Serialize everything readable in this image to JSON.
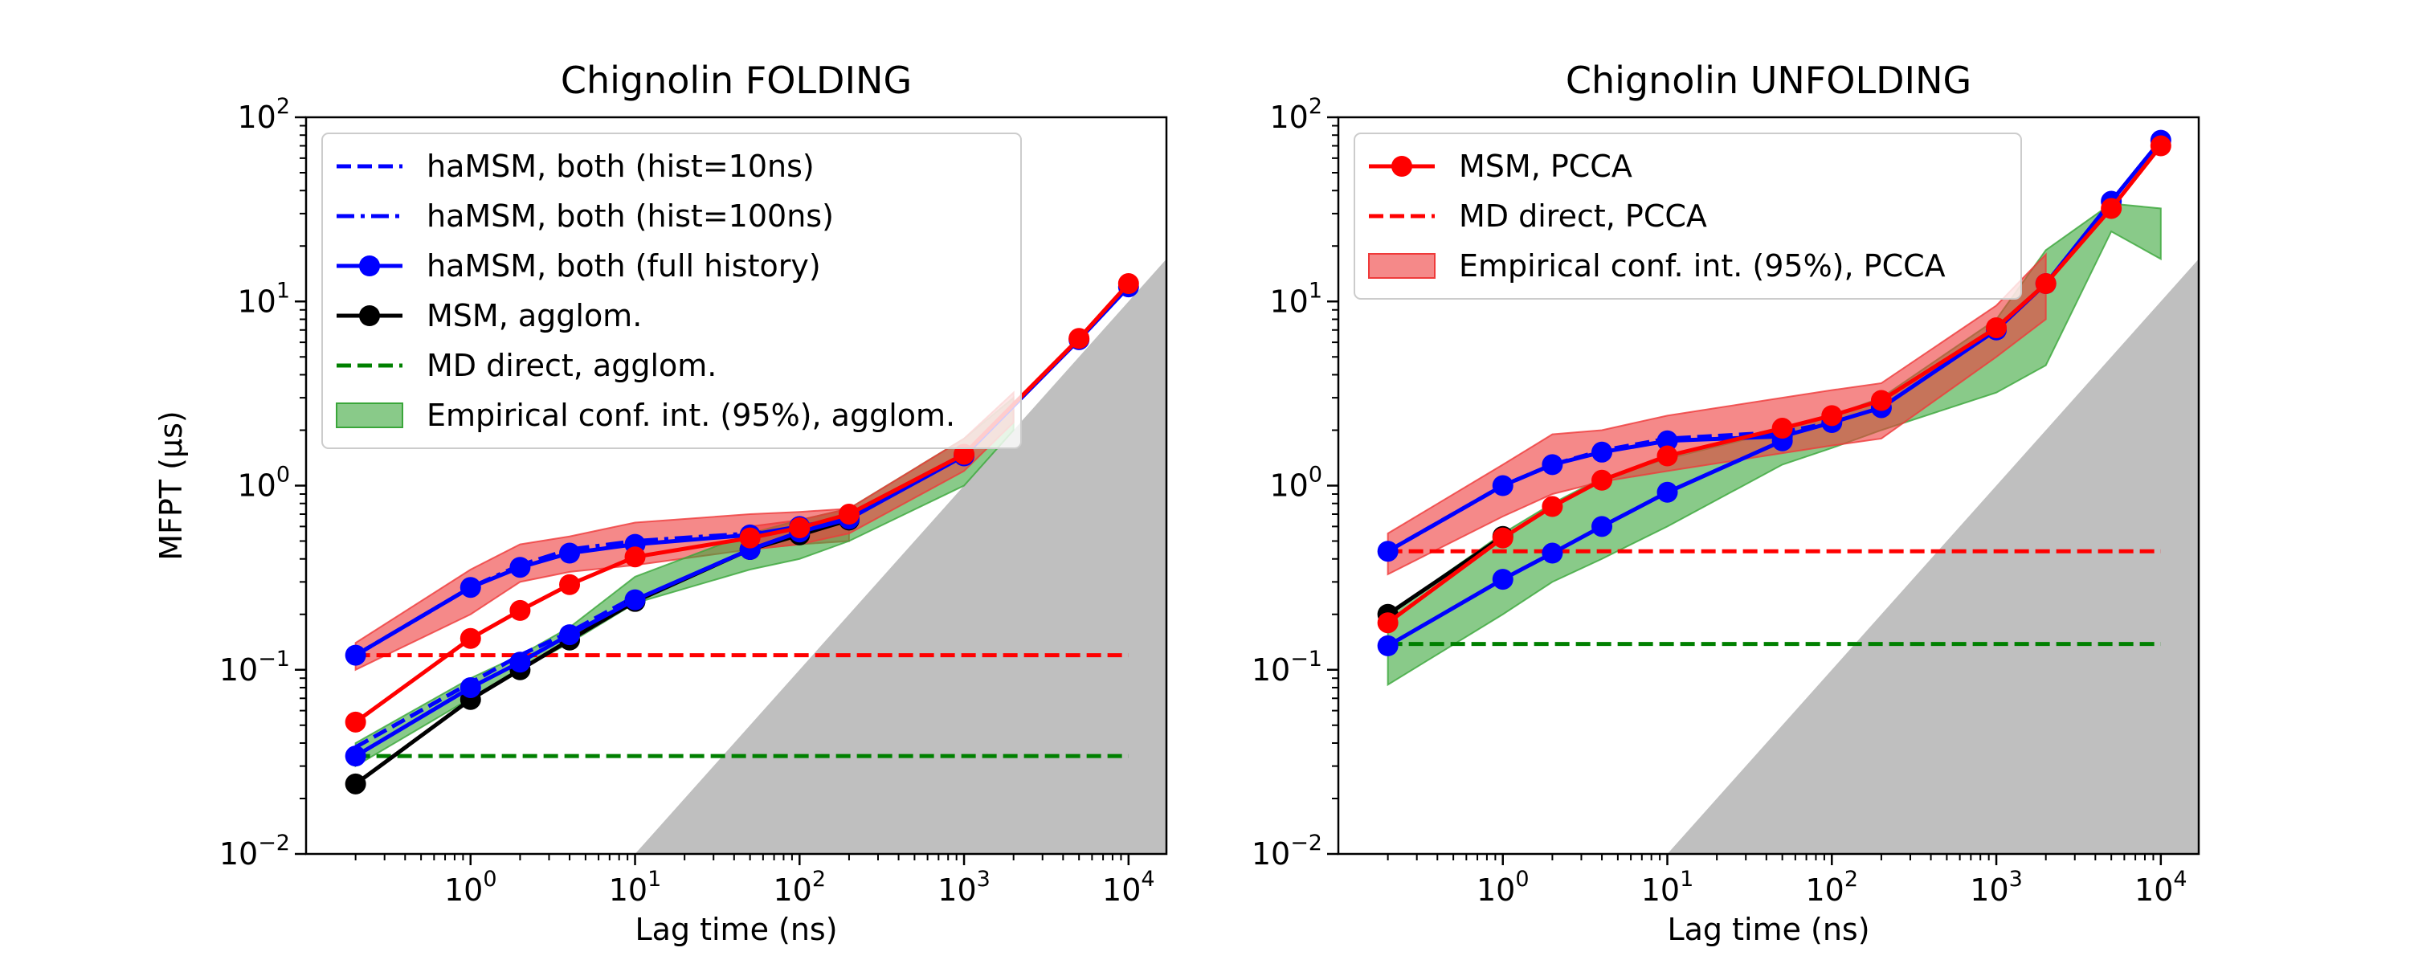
{
  "chart_data": [
    {
      "type": "line",
      "title": "Chignolin FOLDING",
      "xlabel": "Lag time (ns)",
      "ylabel": "MFPT (μs)",
      "xscale": "log",
      "yscale": "log",
      "xlim": [
        0.1,
        17000
      ],
      "ylim": [
        0.01,
        100
      ],
      "xticks": [
        1,
        10,
        100,
        1000,
        10000
      ],
      "xtick_labels": [
        [
          "10",
          "0"
        ],
        [
          "10",
          "1"
        ],
        [
          "10",
          "2"
        ],
        [
          "10",
          "3"
        ],
        [
          "10",
          "4"
        ]
      ],
      "yticks": [
        0.01,
        0.1,
        1,
        10,
        100
      ],
      "ytick_labels": [
        [
          "10",
          "−2"
        ],
        [
          "10",
          "−1"
        ],
        [
          "10",
          "0"
        ],
        [
          "10",
          "1"
        ],
        [
          "10",
          "2"
        ]
      ],
      "legend_position": "top-left",
      "shaded_region": {
        "color": "#bfbfbf",
        "x": [
          10,
          17000,
          17000
        ],
        "y": [
          0.01,
          17,
          0.01
        ]
      },
      "bands": [
        {
          "name": "Empirical conf. int. (95%), PCCA",
          "color": "#ef3a3a",
          "x": [
            0.2,
            1,
            2,
            4,
            10,
            50,
            100,
            200
          ],
          "lo": [
            0.1,
            0.2,
            0.3,
            0.34,
            0.37,
            0.45,
            0.48,
            0.5
          ],
          "hi": [
            0.14,
            0.35,
            0.48,
            0.53,
            0.63,
            0.7,
            0.72,
            0.75
          ]
        },
        {
          "name": "Empirical conf. int. (95%), agglom.",
          "color": "#3aa63a",
          "x": [
            0.2,
            1,
            2,
            4,
            10,
            50,
            100,
            200,
            1000,
            2000
          ],
          "lo": [
            0.03,
            0.07,
            0.1,
            0.14,
            0.23,
            0.35,
            0.4,
            0.5,
            1.0,
            2.0
          ],
          "hi": [
            0.04,
            0.09,
            0.12,
            0.17,
            0.32,
            0.55,
            0.65,
            0.75,
            1.8,
            3.0
          ]
        },
        {
          "name": "Empirical conf. int. (95%), PCCA",
          "color": "#ef3a3a",
          "x": [
            50,
            100,
            200,
            1000,
            2000
          ],
          "lo": [
            0.45,
            0.48,
            0.55,
            1.2,
            2.2
          ],
          "hi": [
            0.6,
            0.65,
            0.75,
            1.8,
            3.2
          ]
        }
      ],
      "series": [
        {
          "name": "MD direct, PCCA",
          "color": "#ff0000",
          "style": "dashed",
          "x": [
            0.2,
            10000
          ],
          "y": [
            0.12,
            0.12
          ]
        },
        {
          "name": "MD direct, agglom.",
          "color": "#008000",
          "style": "dashed",
          "x": [
            0.2,
            10000
          ],
          "y": [
            0.034,
            0.034
          ]
        },
        {
          "name": "haMSM, both (hist=10ns)",
          "color": "#0000ff",
          "style": "dashed",
          "x": [
            0.2,
            1,
            2,
            4,
            10
          ],
          "y": [
            0.038,
            0.085,
            0.12,
            0.16,
            0.25
          ]
        },
        {
          "name": "haMSM, both (hist=100ns)",
          "color": "#0000ff",
          "style": "dashdot",
          "x": [
            0.2,
            1,
            2,
            4,
            10,
            50,
            100,
            200
          ],
          "y": [
            0.12,
            0.28,
            0.37,
            0.45,
            0.5,
            0.55,
            0.58,
            0.65
          ]
        },
        {
          "name": "MSM, agglom.",
          "color": "#000000",
          "style": "solid",
          "marker": true,
          "x": [
            0.2,
            1,
            2,
            4,
            10,
            50,
            100,
            200
          ],
          "y": [
            0.024,
            0.069,
            0.1,
            0.145,
            0.235,
            0.45,
            0.54,
            0.65
          ]
        },
        {
          "name": "haMSM, both (full history)",
          "color": "#0000ff",
          "style": "solid",
          "marker": true,
          "x": [
            0.2,
            1,
            2,
            4,
            10,
            50,
            100,
            200,
            1000,
            5000,
            10000
          ],
          "y": [
            0.034,
            0.08,
            0.11,
            0.155,
            0.24,
            0.45,
            0.56,
            0.66,
            1.45,
            6.2,
            12
          ]
        },
        {
          "name": "haMSM, both (full history)",
          "color": "#0000ff",
          "style": "solid",
          "marker": true,
          "x": [
            0.2,
            1,
            2,
            4,
            10,
            50,
            100,
            200
          ],
          "y": [
            0.12,
            0.28,
            0.36,
            0.43,
            0.48,
            0.54,
            0.6,
            0.67
          ]
        },
        {
          "name": "MSM, PCCA",
          "color": "#ff0000",
          "style": "solid",
          "marker": true,
          "x": [
            0.2,
            1,
            2,
            4,
            10,
            50,
            100,
            200,
            1000,
            5000,
            10000
          ],
          "y": [
            0.052,
            0.148,
            0.21,
            0.29,
            0.41,
            0.52,
            0.59,
            0.7,
            1.48,
            6.3,
            12.5
          ]
        }
      ],
      "legend": [
        {
          "label": "haMSM, both (hist=10ns)",
          "color": "#0000ff",
          "kind": "dashed"
        },
        {
          "label": "haMSM, both (hist=100ns)",
          "color": "#0000ff",
          "kind": "dashdot"
        },
        {
          "label": "haMSM, both (full history)",
          "color": "#0000ff",
          "kind": "marker"
        },
        {
          "label": "MSM, agglom.",
          "color": "#000000",
          "kind": "marker"
        },
        {
          "label": "MD direct, agglom.",
          "color": "#008000",
          "kind": "dashed"
        },
        {
          "label": "Empirical conf. int. (95%), agglom.",
          "color": "#3aa63a",
          "kind": "patch"
        }
      ]
    },
    {
      "type": "line",
      "title": "Chignolin UNFOLDING",
      "xlabel": "Lag time (ns)",
      "ylabel": "",
      "xscale": "log",
      "yscale": "log",
      "xlim": [
        0.1,
        17000
      ],
      "ylim": [
        0.01,
        100
      ],
      "xticks": [
        1,
        10,
        100,
        1000,
        10000
      ],
      "xtick_labels": [
        [
          "10",
          "0"
        ],
        [
          "10",
          "1"
        ],
        [
          "10",
          "2"
        ],
        [
          "10",
          "3"
        ],
        [
          "10",
          "4"
        ]
      ],
      "yticks": [
        0.01,
        0.1,
        1,
        10,
        100
      ],
      "ytick_labels": [
        [
          "10",
          "−2"
        ],
        [
          "10",
          "−1"
        ],
        [
          "10",
          "0"
        ],
        [
          "10",
          "1"
        ],
        [
          "10",
          "2"
        ]
      ],
      "legend_position": "top-left",
      "shaded_region": {
        "color": "#bfbfbf",
        "x": [
          10,
          17000,
          17000
        ],
        "y": [
          0.01,
          17,
          0.01
        ]
      },
      "bands": [
        {
          "name": "Empirical conf. int. (95%), agglom.",
          "color": "#3aa63a",
          "x": [
            0.2,
            1,
            2,
            4,
            10,
            50,
            100,
            200,
            1000,
            2000,
            5000,
            10000
          ],
          "lo": [
            0.083,
            0.2,
            0.3,
            0.4,
            0.6,
            1.3,
            1.6,
            2.0,
            3.2,
            4.5,
            24,
            17
          ],
          "hi": [
            0.2,
            0.55,
            0.8,
            1.1,
            1.4,
            2.0,
            2.4,
            3.0,
            8.0,
            19,
            34,
            32
          ]
        },
        {
          "name": "Empirical conf. int. (95%), PCCA",
          "color": "#ef3a3a",
          "x": [
            0.2,
            1,
            2,
            4,
            10,
            50,
            100,
            200,
            1000,
            2000
          ],
          "lo": [
            0.33,
            0.68,
            0.9,
            1.05,
            1.2,
            1.5,
            1.65,
            1.8,
            5.0,
            8.0
          ],
          "hi": [
            0.55,
            1.3,
            1.9,
            2.0,
            2.4,
            3.0,
            3.3,
            3.6,
            9.5,
            18
          ]
        }
      ],
      "series": [
        {
          "name": "MD direct, PCCA",
          "color": "#ff0000",
          "style": "dashed",
          "x": [
            0.2,
            10000
          ],
          "y": [
            0.44,
            0.44
          ]
        },
        {
          "name": "MD direct, agglom.",
          "color": "#008000",
          "style": "dashed",
          "x": [
            0.2,
            10000
          ],
          "y": [
            0.138,
            0.138
          ]
        },
        {
          "name": "MSM, agglom.",
          "color": "#000000",
          "style": "solid",
          "marker": true,
          "x": [
            0.2,
            1
          ],
          "y": [
            0.2,
            0.53
          ]
        },
        {
          "name": "haMSM, both (hist=100ns)",
          "color": "#0000ff",
          "style": "dashed",
          "x": [
            0.2,
            1,
            2,
            4,
            10,
            50,
            100
          ],
          "y": [
            0.44,
            1.0,
            1.3,
            1.55,
            1.8,
            1.95,
            2.2
          ]
        },
        {
          "name": "haMSM, both (full history)",
          "color": "#0000ff",
          "style": "solid",
          "marker": true,
          "x": [
            0.2,
            1,
            2,
            4,
            10,
            50,
            100,
            200,
            1000,
            2000,
            5000,
            10000
          ],
          "y": [
            0.44,
            1.0,
            1.3,
            1.52,
            1.75,
            1.85,
            2.2,
            2.65,
            7.0,
            12.5,
            35,
            75
          ]
        },
        {
          "name": "haMSM, both (full history)",
          "color": "#0000ff",
          "style": "solid",
          "marker": true,
          "x": [
            0.2,
            1,
            2,
            4,
            10,
            50
          ],
          "y": [
            0.135,
            0.31,
            0.43,
            0.6,
            0.92,
            1.75
          ]
        },
        {
          "name": "MSM, PCCA",
          "color": "#ff0000",
          "style": "solid",
          "marker": true,
          "x": [
            0.2,
            1,
            2,
            4,
            10,
            50,
            100,
            200,
            1000,
            2000,
            5000,
            10000
          ],
          "y": [
            0.18,
            0.52,
            0.77,
            1.07,
            1.45,
            2.05,
            2.4,
            2.9,
            7.2,
            12.5,
            32,
            70
          ]
        }
      ],
      "legend": [
        {
          "label": "MSM, PCCA",
          "color": "#ff0000",
          "kind": "marker"
        },
        {
          "label": "MD direct, PCCA",
          "color": "#ff0000",
          "kind": "dashed"
        },
        {
          "label": "Empirical conf. int. (95%), PCCA",
          "color": "#ef3a3a",
          "kind": "patch"
        }
      ]
    }
  ]
}
